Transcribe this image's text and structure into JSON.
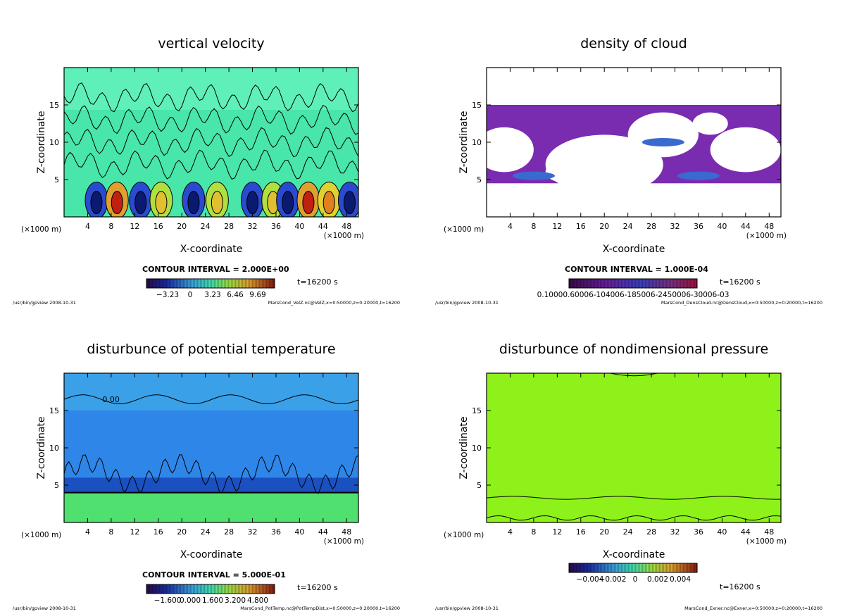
{
  "chart_data": [
    {
      "type": "heatmap",
      "title": "vertical velocity",
      "xlabel": "X-coordinate",
      "ylabel": "Z-coordinate",
      "x_unit": "(×1000 m)",
      "x_ticks": [
        4,
        8,
        12,
        16,
        20,
        24,
        28,
        32,
        36,
        40,
        44,
        48
      ],
      "y_ticks": [
        5,
        10,
        15
      ],
      "xlim": [
        0,
        50
      ],
      "ylim": [
        0,
        20
      ],
      "contour_interval": "CONTOUR INTERVAL = 2.000E+00",
      "colorbar_labels": [
        "−3.23",
        "0",
        "3.23",
        "6.46",
        "9.69"
      ],
      "time": "t=16200 s",
      "footer_left": "/usr/bin/gpview  2008-10-31",
      "footer_right": "MarsCond_VelZ.nc@VelZ,x=0:50000,z=0:20000,t=16200"
    },
    {
      "type": "heatmap",
      "title": "density of cloud",
      "xlabel": "X-coordinate",
      "ylabel": "Z-coordinate",
      "x_unit": "(×1000 m)",
      "x_ticks": [
        4,
        8,
        12,
        16,
        20,
        24,
        28,
        32,
        36,
        40,
        44,
        48
      ],
      "y_ticks": [
        5,
        10,
        15
      ],
      "xlim": [
        0,
        50
      ],
      "ylim": [
        0,
        20
      ],
      "contour_interval": "CONTOUR INTERVAL = 1.000E-04",
      "colorbar_labels": [
        "0.10000.60006-104006-185006-2450006-30006-03"
      ],
      "time": "t=16200 s",
      "footer_left": "/usr/bin/gpview  2008-10-31",
      "footer_right": "MarsCond_DensCloud.nc@DensCloud,x=0:50000,z=0:20000,t=16200"
    },
    {
      "type": "heatmap",
      "title": "disturbunce of potential temperature",
      "xlabel": "X-coordinate",
      "ylabel": "Z-coordinate",
      "x_unit": "(×1000 m)",
      "x_ticks": [
        4,
        8,
        12,
        16,
        20,
        24,
        28,
        32,
        36,
        40,
        44,
        48
      ],
      "y_ticks": [
        5,
        10,
        15
      ],
      "xlim": [
        0,
        50
      ],
      "ylim": [
        0,
        20
      ],
      "contour_label": "0.00",
      "contour_interval": "CONTOUR INTERVAL = 5.000E-01",
      "colorbar_labels": [
        "−1.600",
        "0.000",
        "1.600",
        "3.200",
        "4.800"
      ],
      "time": "t=16200 s",
      "footer_left": "/usr/bin/gpview  2008-10-31",
      "footer_right": "MarsCond_PotTemp.nc@PotTempDist,x=0:50000,z=0:20000,t=16200"
    },
    {
      "type": "heatmap",
      "title": "disturbunce of nondimensional pressure",
      "xlabel": "X-coordinate",
      "ylabel": "Z-coordinate",
      "x_unit": "(×1000 m)",
      "x_ticks": [
        4,
        8,
        12,
        16,
        20,
        24,
        28,
        32,
        36,
        40,
        44,
        48
      ],
      "y_ticks": [
        5,
        10,
        15
      ],
      "xlim": [
        0,
        50
      ],
      "ylim": [
        0,
        20
      ],
      "colorbar_labels": [
        "−0.004",
        "−0.002",
        "0",
        "0.002",
        "0.004"
      ],
      "time": "t=16200 s",
      "footer_left": "/usr/bin/gpview  2008-10-31",
      "footer_right": "MarsCond_Exner.nc@Exner,x=0:50000,z=0:20000,t=16200"
    }
  ]
}
